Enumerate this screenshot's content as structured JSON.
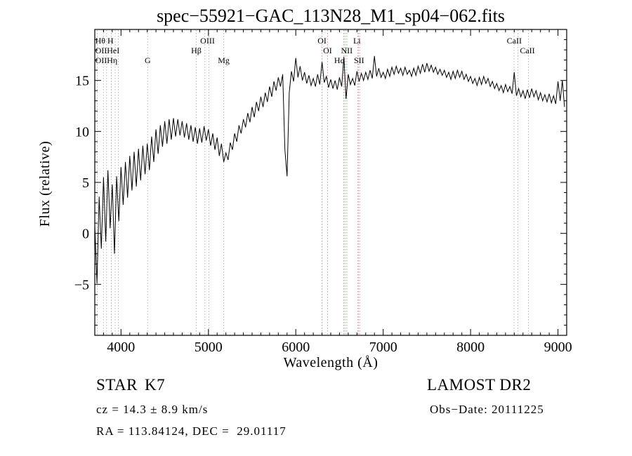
{
  "chart_data": {
    "type": "line",
    "title": "spec−55921−GAC_113N28_M1_sp04−062.fits",
    "xlabel": "Wavelength (Å)",
    "ylabel": "Flux (relative)",
    "xlim": [
      3700,
      9100
    ],
    "ylim": [
      -10,
      20
    ],
    "x_major_step": 1000,
    "x_minor_step": 100,
    "y_major_step": 5,
    "y_minor_step": 1,
    "y_labeled_ticks": [
      -5,
      0,
      5,
      10,
      15
    ],
    "x_labeled_ticks": [
      4000,
      5000,
      6000,
      7000,
      8000,
      9000
    ],
    "wavelength_start": 3700,
    "wavelength_step": 25,
    "flux": [
      0.8,
      -4.9,
      3.6,
      -1.5,
      5.5,
      -0.8,
      6.2,
      0.5,
      4.8,
      -2.0,
      5.6,
      1.2,
      6.5,
      2.8,
      7.0,
      3.5,
      7.6,
      4.2,
      8.0,
      4.6,
      8.3,
      5.2,
      8.6,
      5.8,
      8.8,
      6.2,
      9.5,
      7.0,
      10.2,
      7.8,
      10.6,
      8.5,
      11.0,
      8.8,
      11.2,
      9.2,
      11.3,
      9.5,
      11.2,
      9.6,
      11.0,
      9.4,
      10.8,
      9.2,
      10.6,
      9.0,
      10.4,
      8.8,
      10.3,
      8.9,
      10.5,
      9.1,
      10.2,
      8.6,
      9.8,
      8.2,
      9.4,
      7.6,
      8.8,
      7.0,
      7.9,
      7.2,
      8.9,
      8.2,
      9.8,
      9.0,
      10.6,
      9.8,
      11.2,
      10.4,
      11.8,
      10.9,
      12.4,
      11.4,
      12.9,
      12.0,
      13.4,
      12.4,
      13.8,
      12.9,
      14.4,
      13.4,
      14.9,
      14.0,
      15.3,
      14.4,
      15.6,
      8.2,
      5.6,
      13.8,
      15.9,
      14.9,
      17.2,
      15.3,
      16.4,
      15.0,
      15.8,
      14.7,
      15.5,
      14.5,
      15.2,
      14.4,
      15.6,
      14.6,
      16.8,
      14.8,
      15.4,
      14.3,
      15.1,
      14.2,
      15.0,
      14.1,
      15.3,
      14.4,
      17.3,
      13.2,
      15.6,
      14.6,
      15.2,
      14.5,
      15.9,
      14.9,
      15.7,
      15.0,
      15.8,
      15.1,
      16.0,
      15.2,
      17.4,
      15.4,
      16.2,
      15.3,
      15.8,
      15.2,
      16.1,
      15.4,
      16.3,
      15.6,
      16.4,
      15.7,
      16.2,
      15.5,
      16.3,
      15.6,
      16.0,
      15.4,
      16.2,
      15.5,
      16.4,
      15.7,
      16.6,
      15.8,
      16.7,
      15.9,
      16.5,
      15.8,
      16.3,
      15.6,
      16.1,
      15.5,
      16.0,
      15.3,
      15.8,
      15.1,
      15.9,
      15.2,
      16.0,
      15.3,
      15.9,
      15.1,
      15.6,
      14.9,
      15.4,
      14.7,
      15.2,
      14.5,
      15.3,
      14.6,
      15.4,
      14.7,
      15.2,
      14.4,
      14.9,
      14.2,
      14.7,
      14.0,
      14.5,
      13.8,
      14.6,
      13.9,
      14.4,
      13.7,
      15.8,
      13.5,
      14.2,
      13.4,
      14.0,
      13.2,
      14.1,
      13.3,
      14.2,
      13.4,
      14.0,
      13.1,
      13.8,
      13.0,
      13.6,
      12.9,
      13.7,
      12.8,
      13.5,
      12.7,
      14.9,
      13.0,
      15.0,
      12.4
    ],
    "trace_color": "#000000",
    "line_colors": {
      "gray": "#b3b3b3",
      "red": "#d98f8f"
    },
    "spectral_lines": [
      {
        "wl": 3727,
        "c": "gray"
      },
      {
        "wl": 3798,
        "c": "gray"
      },
      {
        "wl": 3835,
        "c": "gray"
      },
      {
        "wl": 3889,
        "c": "gray"
      },
      {
        "wl": 3934,
        "c": "gray"
      },
      {
        "wl": 3969,
        "c": "gray"
      },
      {
        "wl": 4305,
        "c": "gray"
      },
      {
        "wl": 4861,
        "c": "gray"
      },
      {
        "wl": 4959,
        "c": "gray"
      },
      {
        "wl": 5007,
        "c": "gray"
      },
      {
        "wl": 5175,
        "c": "gray"
      },
      {
        "wl": 6300,
        "c": "red"
      },
      {
        "wl": 6363,
        "c": "red"
      },
      {
        "wl": 6548,
        "c": "red"
      },
      {
        "wl": 6563,
        "c": "red"
      },
      {
        "wl": 6583,
        "c": "red"
      },
      {
        "wl": 6708,
        "c": "gray"
      },
      {
        "wl": 6717,
        "c": "red"
      },
      {
        "wl": 6731,
        "c": "red"
      },
      {
        "wl": 8498,
        "c": "gray"
      },
      {
        "wl": 8542,
        "c": "gray"
      },
      {
        "wl": 8662,
        "c": "gray"
      }
    ],
    "line_labels": [
      {
        "text": "Hθ H",
        "row": 1,
        "wl": 3705,
        "anchor": "start"
      },
      {
        "text": "OIIHeI",
        "row": 2,
        "wl": 3705,
        "anchor": "start"
      },
      {
        "text": "OIIHη",
        "row": 3,
        "wl": 3705,
        "anchor": "start"
      },
      {
        "text": "G",
        "row": 3,
        "wl": 4305
      },
      {
        "text": "OIII",
        "row": 1,
        "wl": 4990
      },
      {
        "text": "Hβ",
        "row": 2,
        "wl": 4861
      },
      {
        "text": "Mg",
        "row": 3,
        "wl": 5175
      },
      {
        "text": "OI",
        "row": 1,
        "wl": 6300
      },
      {
        "text": "OI",
        "row": 2,
        "wl": 6363
      },
      {
        "text": "Li",
        "row": 1,
        "wl": 6700
      },
      {
        "text": "NII",
        "row": 2,
        "wl": 6583
      },
      {
        "text": "Hα",
        "row": 3,
        "wl": 6500
      },
      {
        "text": "SII",
        "row": 3,
        "wl": 6724
      },
      {
        "text": "CaII",
        "row": 1,
        "wl": 8500
      },
      {
        "text": "CaII",
        "row": 2,
        "wl": 8650
      }
    ]
  },
  "footer": {
    "class": "STAR",
    "subclass": "K7",
    "survey": "LAMOST DR2",
    "cz": "cz = 14.3 ± 8.9 km/s",
    "obs_date": "Obs−Date: 20111225",
    "radec": "RA = 113.84124, DEC =  29.01117"
  }
}
